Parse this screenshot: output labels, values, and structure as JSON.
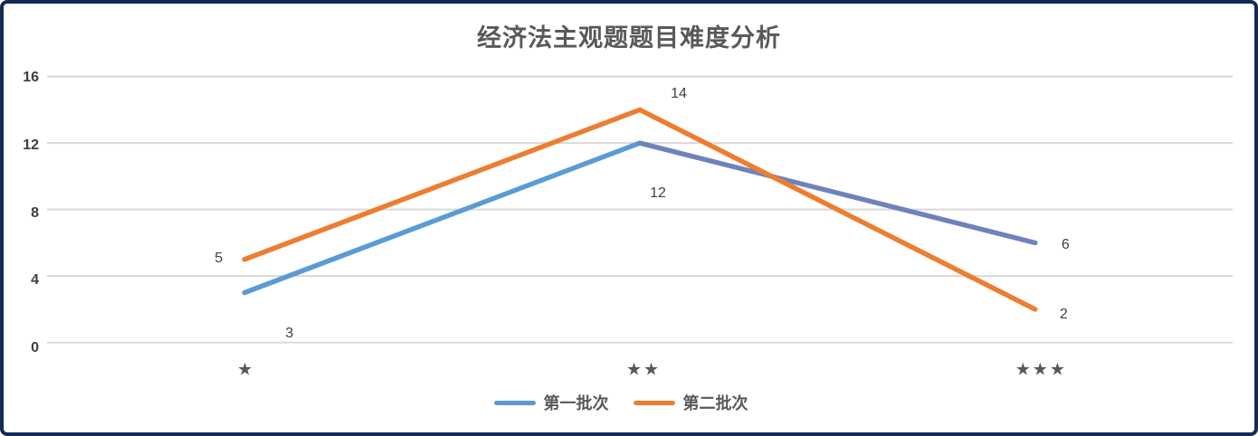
{
  "chart_data": {
    "type": "line",
    "title": "经济法主观题题目难度分析",
    "categories": [
      "★",
      "★★",
      "★★★"
    ],
    "series": [
      {
        "name": "第一批次",
        "color": "#5B9BD5",
        "segment_colors": [
          "#5B9BD5",
          "#6E83BC"
        ],
        "values": [
          3,
          12,
          6
        ],
        "label_offsets": [
          [
            48,
            40
          ],
          [
            16,
            53
          ],
          [
            27,
            -2
          ]
        ]
      },
      {
        "name": "第二批次",
        "color": "#ED7D31",
        "segment_colors": [
          "#ED7D31",
          "#ED7D31"
        ],
        "values": [
          5,
          14,
          2
        ],
        "label_offsets": [
          [
            -30,
            -6
          ],
          [
            39,
            -19
          ],
          [
            25,
            0
          ]
        ]
      }
    ],
    "yticks": [
      0,
      4,
      8,
      12,
      16
    ],
    "ylim": [
      0,
      16
    ],
    "xlabel": "",
    "ylabel": "",
    "grid": true,
    "gridline_color": "#D9D9D9",
    "legend_position": "bottom",
    "frame_border_color": "#152A54",
    "title_color": "#595959",
    "label_color": "#404040"
  }
}
